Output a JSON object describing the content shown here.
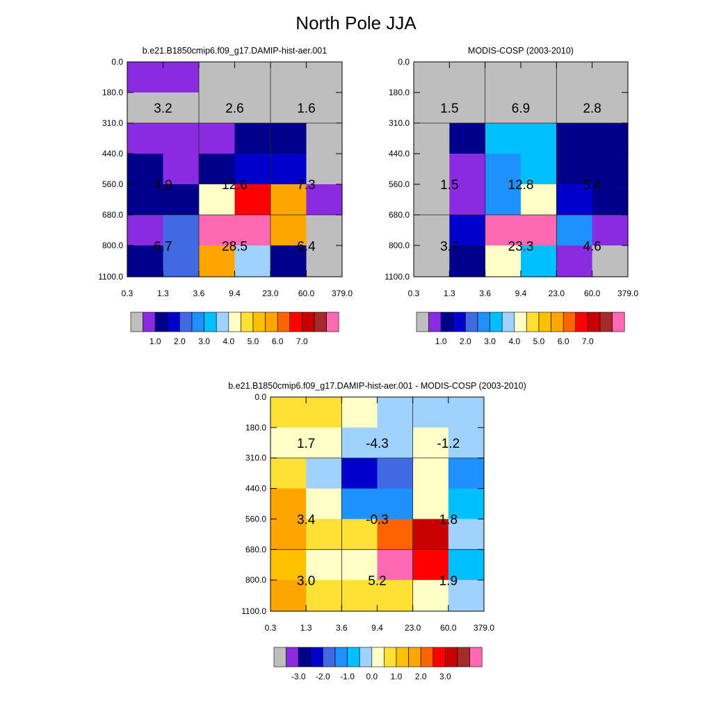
{
  "title": "North Pole JJA",
  "chart_data": [
    {
      "type": "heatmap",
      "title": "b.e21.B1850cmip6.f09_g17.DAMIP-hist-aer.001",
      "x_ticks": [
        "0.3",
        "1.3",
        "3.6",
        "9.4",
        "23.0",
        "60.0",
        "379.0"
      ],
      "y_ticks": [
        "0.0",
        "180.0",
        "310.0",
        "440.0",
        "560.0",
        "680.0",
        "800.0",
        "1100.0"
      ],
      "cells": [
        [
          1,
          1,
          0,
          0,
          0,
          0
        ],
        [
          0,
          0,
          0,
          0,
          0,
          0
        ],
        [
          1,
          1,
          1,
          2,
          2,
          0
        ],
        [
          2,
          1,
          2,
          3,
          3,
          0
        ],
        [
          2,
          2,
          8,
          13,
          11,
          1
        ],
        [
          1,
          4,
          16,
          16,
          11,
          0
        ],
        [
          2,
          4,
          11,
          7,
          2,
          0
        ]
      ],
      "labels": [
        {
          "row": 1,
          "col": 0,
          "text": "3.2"
        },
        {
          "row": 1,
          "col": 1,
          "text": "2.6"
        },
        {
          "row": 1,
          "col": 2,
          "text": "1.6"
        },
        {
          "row": 4,
          "col": 0,
          "text": "4.9"
        },
        {
          "row": 4,
          "col": 1,
          "text": "12.6"
        },
        {
          "row": 4,
          "col": 2,
          "text": "7.3"
        },
        {
          "row": 6,
          "col": 0,
          "text": "6.7"
        },
        {
          "row": 6,
          "col": 1,
          "text": "28.5"
        },
        {
          "row": 6,
          "col": 2,
          "text": "6.4"
        }
      ],
      "colorbar": {
        "colors": [
          "#bebebe",
          "#8a2be2",
          "#00008b",
          "#0000cd",
          "#4169e1",
          "#1e90ff",
          "#00bfff",
          "#a0d2ff",
          "#ffffc8",
          "#ffe135",
          "#ffc000",
          "#ffa500",
          "#ff6400",
          "#ff0000",
          "#c80000",
          "#a52a2a",
          "#ff69b4"
        ],
        "labels": [
          "1.0",
          "2.0",
          "3.0",
          "4.0",
          "5.0",
          "6.0",
          "7.0"
        ]
      }
    },
    {
      "type": "heatmap",
      "title": "MODIS-COSP (2003-2010)",
      "x_ticks": [
        "0.3",
        "1.3",
        "3.6",
        "9.4",
        "23.0",
        "60.0",
        "379.0"
      ],
      "y_ticks": [
        "0.0",
        "180.0",
        "310.0",
        "440.0",
        "560.0",
        "680.0",
        "800.0",
        "1100.0"
      ],
      "cells": [
        [
          0,
          0,
          0,
          0,
          0,
          0
        ],
        [
          0,
          0,
          0,
          0,
          0,
          0
        ],
        [
          0,
          2,
          6,
          6,
          2,
          2
        ],
        [
          0,
          1,
          5,
          6,
          2,
          2
        ],
        [
          0,
          1,
          5,
          8,
          3,
          2
        ],
        [
          0,
          3,
          16,
          16,
          5,
          1
        ],
        [
          0,
          2,
          8,
          6,
          1,
          0
        ]
      ],
      "labels": [
        {
          "row": 1,
          "col": 0,
          "text": "1.5"
        },
        {
          "row": 1,
          "col": 1,
          "text": "6.9"
        },
        {
          "row": 1,
          "col": 2,
          "text": "2.8"
        },
        {
          "row": 4,
          "col": 0,
          "text": "1.5"
        },
        {
          "row": 4,
          "col": 1,
          "text": "12.8"
        },
        {
          "row": 4,
          "col": 2,
          "text": "5.4"
        },
        {
          "row": 6,
          "col": 0,
          "text": "3.7"
        },
        {
          "row": 6,
          "col": 1,
          "text": "23.3"
        },
        {
          "row": 6,
          "col": 2,
          "text": "4.6"
        }
      ],
      "colorbar": {
        "colors": [
          "#bebebe",
          "#8a2be2",
          "#00008b",
          "#0000cd",
          "#4169e1",
          "#1e90ff",
          "#00bfff",
          "#a0d2ff",
          "#ffffc8",
          "#ffe135",
          "#ffc000",
          "#ffa500",
          "#ff6400",
          "#ff0000",
          "#c80000",
          "#a52a2a",
          "#ff69b4"
        ],
        "labels": [
          "1.0",
          "2.0",
          "3.0",
          "4.0",
          "5.0",
          "6.0",
          "7.0"
        ]
      }
    },
    {
      "type": "heatmap",
      "title": "b.e21.B1850cmip6.f09_g17.DAMIP-hist-aer.001 - MODIS-COSP (2003-2010)",
      "x_ticks": [
        "0.3",
        "1.3",
        "3.6",
        "9.4",
        "23.0",
        "60.0",
        "379.0"
      ],
      "y_ticks": [
        "0.0",
        "180.0",
        "310.0",
        "440.0",
        "560.0",
        "680.0",
        "800.0",
        "1100.0"
      ],
      "cells": [
        [
          9,
          9,
          8,
          7,
          7,
          7
        ],
        [
          8,
          8,
          7,
          7,
          8,
          7
        ],
        [
          9,
          7,
          3,
          4,
          8,
          5
        ],
        [
          11,
          8,
          5,
          5,
          8,
          6
        ],
        [
          11,
          9,
          9,
          12,
          14,
          7
        ],
        [
          10,
          8,
          8,
          16,
          13,
          6
        ],
        [
          11,
          9,
          9,
          9,
          8,
          7
        ]
      ],
      "labels": [
        {
          "row": 1,
          "col": 0,
          "text": "1.7"
        },
        {
          "row": 1,
          "col": 1,
          "text": "-4.3"
        },
        {
          "row": 1,
          "col": 2,
          "text": "-1.2"
        },
        {
          "row": 4,
          "col": 0,
          "text": "3.4"
        },
        {
          "row": 4,
          "col": 1,
          "text": "-0.3"
        },
        {
          "row": 4,
          "col": 2,
          "text": "1.8"
        },
        {
          "row": 6,
          "col": 0,
          "text": "3.0"
        },
        {
          "row": 6,
          "col": 1,
          "text": "5.2"
        },
        {
          "row": 6,
          "col": 2,
          "text": "1.9"
        }
      ],
      "colorbar": {
        "colors": [
          "#bebebe",
          "#8a2be2",
          "#00008b",
          "#0000cd",
          "#4169e1",
          "#1e90ff",
          "#00bfff",
          "#a0d2ff",
          "#ffffc8",
          "#ffe135",
          "#ffc000",
          "#ffa500",
          "#ff6400",
          "#ff0000",
          "#c80000",
          "#a52a2a",
          "#ff69b4"
        ],
        "labels": [
          "-3.0",
          "-2.0",
          "-1.0",
          "0.0",
          "1.0",
          "2.0",
          "3.0"
        ]
      }
    }
  ]
}
